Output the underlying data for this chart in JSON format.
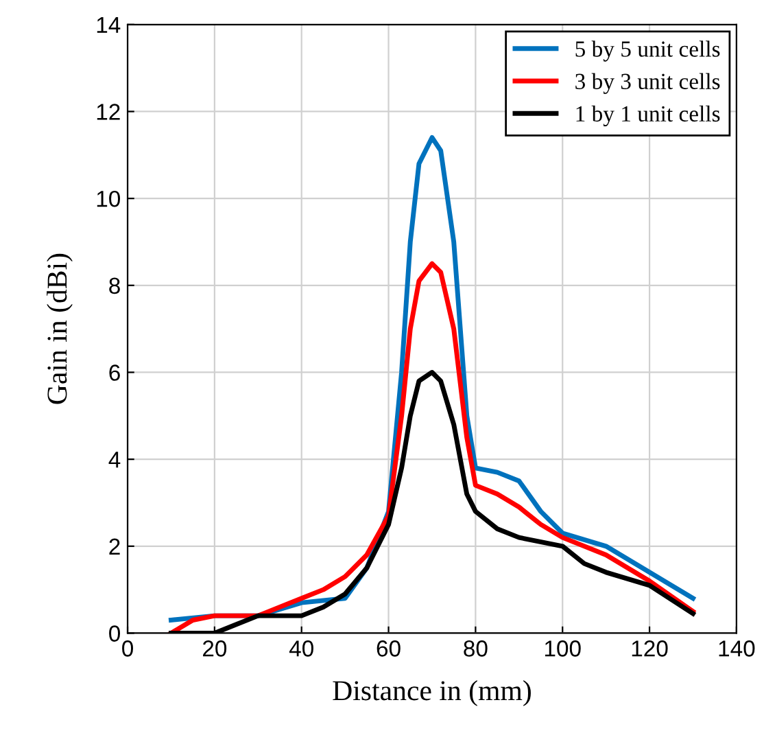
{
  "chart_data": {
    "type": "line",
    "xlabel": "Distance in (mm)",
    "ylabel": "Gain in (dBi)",
    "xlim": [
      0,
      140
    ],
    "ylim": [
      0,
      14
    ],
    "xticks": [
      0,
      20,
      40,
      60,
      80,
      100,
      120,
      140
    ],
    "yticks": [
      0,
      2,
      4,
      6,
      8,
      10,
      12,
      14
    ],
    "grid": true,
    "legend": "top right",
    "series": [
      {
        "name": "5 by 5 unit cells",
        "color": "#0072bd",
        "x": [
          10,
          20,
          30,
          40,
          50,
          55,
          60,
          63,
          65,
          67,
          70,
          72,
          75,
          78,
          80,
          85,
          90,
          95,
          100,
          110,
          120,
          130
        ],
        "values": [
          0.3,
          0.4,
          0.4,
          0.7,
          0.8,
          1.5,
          2.8,
          6,
          9,
          10.8,
          11.4,
          11.1,
          9,
          5,
          3.8,
          3.7,
          3.5,
          2.8,
          2.3,
          2.0,
          1.4,
          0.8
        ]
      },
      {
        "name": "3 by 3 unit cells",
        "color": "#ff0000",
        "x": [
          10,
          15,
          20,
          30,
          40,
          45,
          50,
          55,
          60,
          63,
          65,
          67,
          70,
          72,
          75,
          78,
          80,
          85,
          90,
          95,
          100,
          110,
          120,
          130
        ],
        "values": [
          0.0,
          0.3,
          0.4,
          0.4,
          0.8,
          1.0,
          1.3,
          1.8,
          2.7,
          5,
          7,
          8.1,
          8.5,
          8.3,
          7,
          4.5,
          3.4,
          3.2,
          2.9,
          2.5,
          2.2,
          1.8,
          1.2,
          0.5
        ]
      },
      {
        "name": "1 by 1 unit cells",
        "color": "#000000",
        "x": [
          10,
          20,
          25,
          30,
          40,
          45,
          50,
          55,
          60,
          63,
          65,
          67,
          70,
          72,
          75,
          78,
          80,
          85,
          90,
          100,
          105,
          110,
          120,
          130
        ],
        "values": [
          0,
          0,
          0.2,
          0.4,
          0.4,
          0.6,
          0.9,
          1.5,
          2.5,
          3.8,
          5,
          5.8,
          6.0,
          5.8,
          4.8,
          3.2,
          2.8,
          2.4,
          2.2,
          2.0,
          1.6,
          1.4,
          1.1,
          0.45
        ]
      }
    ]
  }
}
